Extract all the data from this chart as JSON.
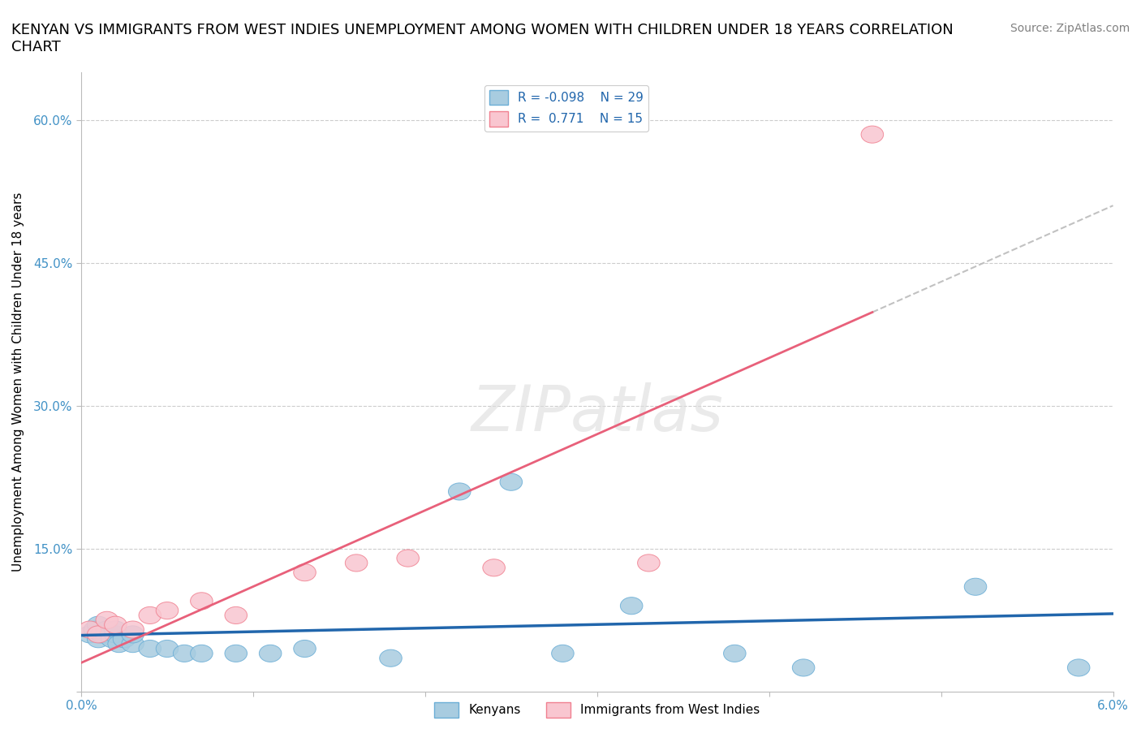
{
  "title": "KENYAN VS IMMIGRANTS FROM WEST INDIES UNEMPLOYMENT AMONG WOMEN WITH CHILDREN UNDER 18 YEARS CORRELATION\nCHART",
  "source": "Source: ZipAtlas.com",
  "xlabel": "",
  "ylabel": "Unemployment Among Women with Children Under 18 years",
  "xlim": [
    0.0,
    0.06
  ],
  "ylim": [
    0.0,
    0.65
  ],
  "yticks": [
    0.0,
    0.15,
    0.3,
    0.45,
    0.6
  ],
  "ytick_labels": [
    "",
    "15.0%",
    "30.0%",
    "45.0%",
    "60.0%"
  ],
  "xticks": [
    0.0,
    0.01,
    0.02,
    0.03,
    0.04,
    0.05,
    0.06
  ],
  "xtick_labels": [
    "0.0%",
    "",
    "",
    "",
    "",
    "",
    "6.0%"
  ],
  "kenyan_x": [
    0.0005,
    0.0008,
    0.001,
    0.001,
    0.0012,
    0.0015,
    0.0018,
    0.002,
    0.002,
    0.0022,
    0.0025,
    0.003,
    0.003,
    0.004,
    0.005,
    0.006,
    0.007,
    0.009,
    0.011,
    0.013,
    0.018,
    0.022,
    0.025,
    0.028,
    0.032,
    0.038,
    0.042,
    0.052,
    0.058
  ],
  "kenyan_y": [
    0.06,
    0.065,
    0.055,
    0.07,
    0.06,
    0.065,
    0.055,
    0.06,
    0.065,
    0.05,
    0.055,
    0.05,
    0.06,
    0.045,
    0.045,
    0.04,
    0.04,
    0.04,
    0.04,
    0.045,
    0.035,
    0.21,
    0.22,
    0.04,
    0.09,
    0.04,
    0.025,
    0.11,
    0.025
  ],
  "westindies_x": [
    0.0005,
    0.001,
    0.0015,
    0.002,
    0.003,
    0.004,
    0.005,
    0.007,
    0.009,
    0.013,
    0.016,
    0.019,
    0.024,
    0.033,
    0.046
  ],
  "westindies_y": [
    0.065,
    0.06,
    0.075,
    0.07,
    0.065,
    0.08,
    0.085,
    0.095,
    0.08,
    0.125,
    0.135,
    0.14,
    0.13,
    0.135,
    0.585
  ],
  "kenyan_color": "#a8cce0",
  "kenyan_edge_color": "#6baed6",
  "westindies_color": "#f9c6d0",
  "westindies_edge_color": "#f08090",
  "trendline_kenyan_color": "#2166ac",
  "trendline_westindies_color": "#e8607a",
  "R_kenyan": -0.098,
  "N_kenyan": 29,
  "R_westindies": 0.771,
  "N_westindies": 15,
  "grid_color": "#cccccc",
  "background_color": "#ffffff",
  "watermark": "ZIPatlas",
  "title_fontsize": 13,
  "label_fontsize": 11,
  "tick_fontsize": 11,
  "legend_fontsize": 11,
  "source_fontsize": 10,
  "tick_color": "#4292c6",
  "axis_color": "#bbbbbb"
}
